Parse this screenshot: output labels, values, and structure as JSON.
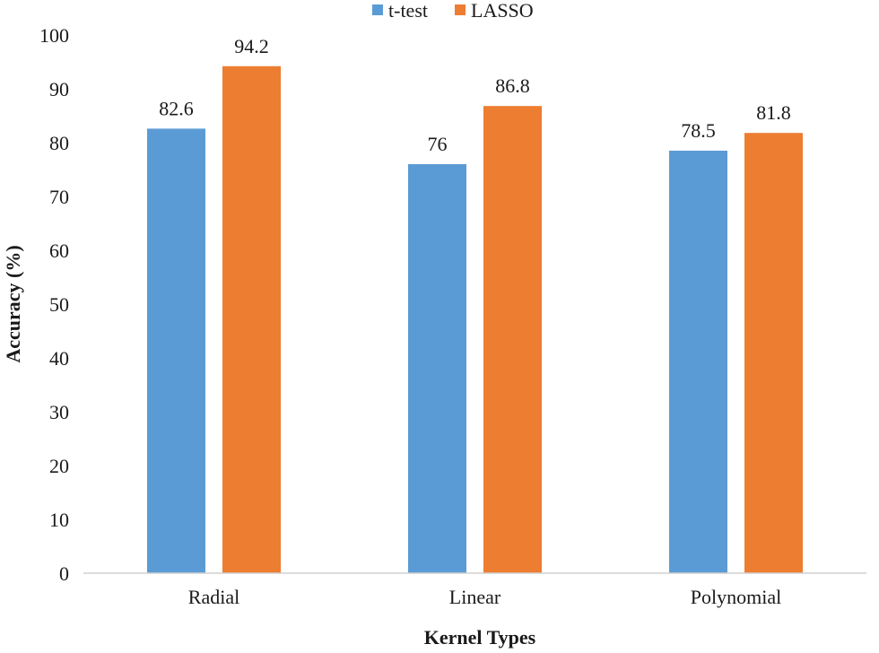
{
  "chart_data": {
    "type": "bar",
    "title": "",
    "xlabel": "Kernel Types",
    "ylabel": "Accuracy (%)",
    "categories": [
      "Radial",
      "Linear",
      "Polynomial"
    ],
    "series": [
      {
        "name": "t-test",
        "color": "#5b9bd5",
        "values": [
          82.6,
          76,
          78.5
        ],
        "labels": [
          "82.6",
          "76",
          "78.5"
        ]
      },
      {
        "name": "LASSO",
        "color": "#ed7d31",
        "values": [
          94.2,
          86.8,
          81.8
        ],
        "labels": [
          "94.2",
          "86.8",
          "81.8"
        ]
      }
    ],
    "ylim": [
      0,
      100
    ],
    "yticks": [
      0,
      10,
      20,
      30,
      40,
      50,
      60,
      70,
      80,
      90,
      100
    ],
    "grid": false,
    "legend_position": "top-center"
  }
}
